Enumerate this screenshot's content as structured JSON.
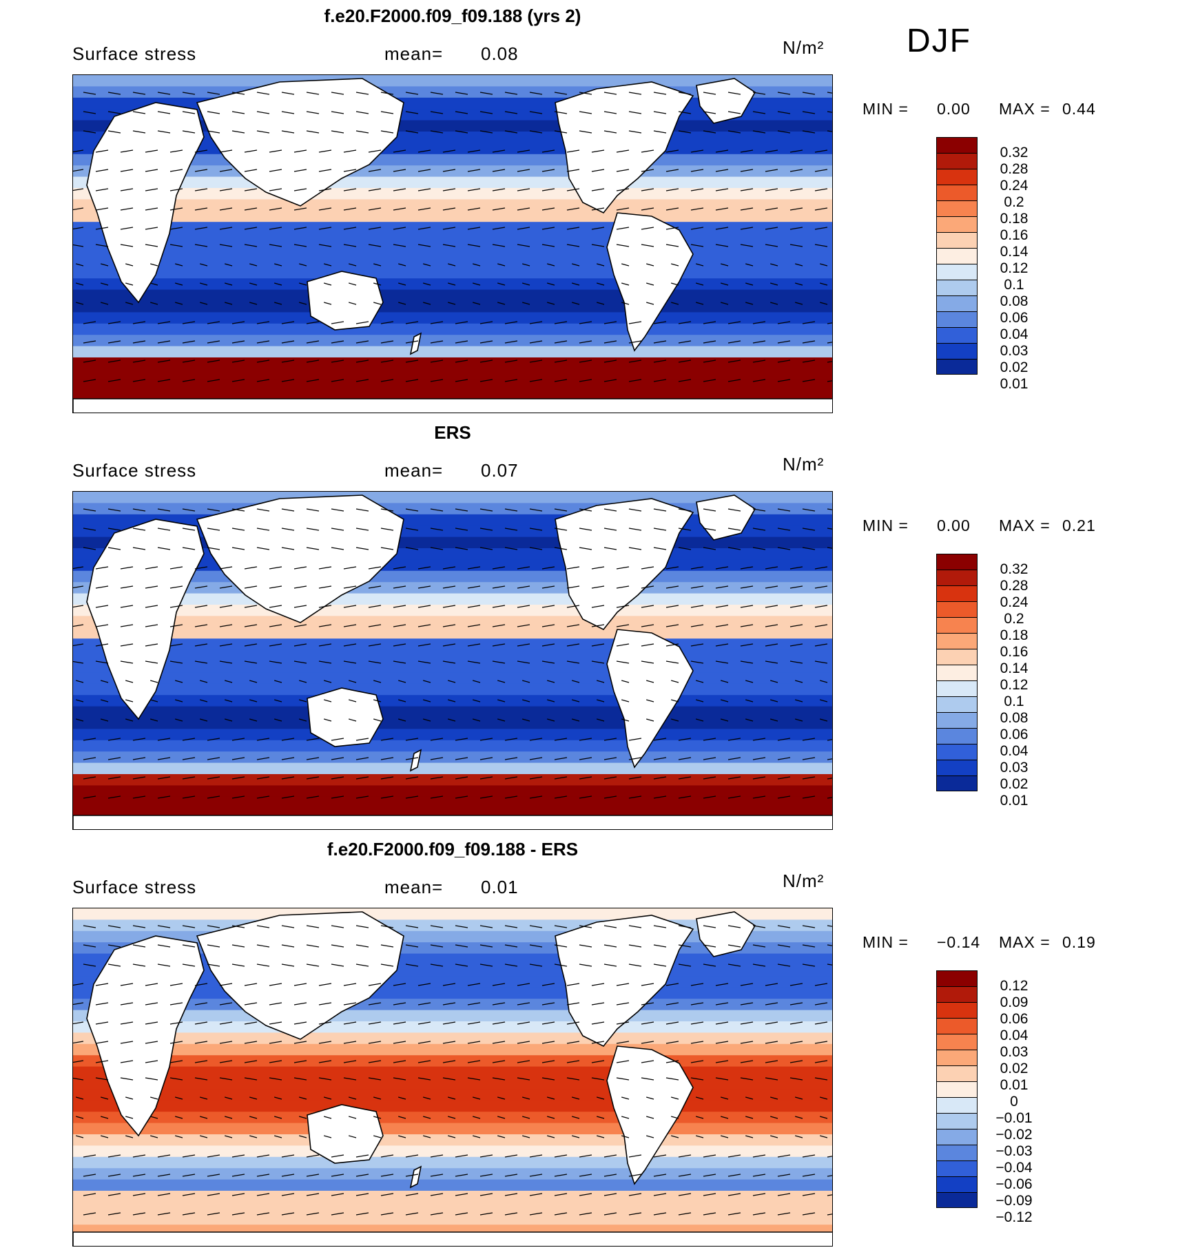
{
  "season": "DJF",
  "panels": [
    {
      "title": "f.e20.F2000.f09_f09.188 (yrs 2)",
      "variable": "Surface stress",
      "mean_label": "mean=",
      "mean_value": "0.08",
      "units": "N/m²",
      "min_label": "MIN =",
      "min_value": "0.00",
      "max_label": "MAX =",
      "max_value": "0.44",
      "colorbar": {
        "levels": [
          "0.32",
          "0.28",
          "0.24",
          "0.2",
          "0.18",
          "0.16",
          "0.14",
          "0.12",
          "0.1",
          "0.08",
          "0.06",
          "0.04",
          "0.03",
          "0.02",
          "0.01"
        ],
        "colors": [
          "#8b0000",
          "#b11a0a",
          "#d8330f",
          "#ec5a2a",
          "#f7834f",
          "#fba878",
          "#fcd1b3",
          "#fdeee2",
          "#d8e8f7",
          "#aecbee",
          "#85aae6",
          "#5b86de",
          "#3160d9",
          "#1340c4",
          "#0a2a99"
        ]
      }
    },
    {
      "title": "ERS",
      "variable": "Surface stress",
      "mean_label": "mean=",
      "mean_value": "0.07",
      "units": "N/m²",
      "min_label": "MIN =",
      "min_value": "0.00",
      "max_label": "MAX =",
      "max_value": "0.21",
      "colorbar": {
        "levels": [
          "0.32",
          "0.28",
          "0.24",
          "0.2",
          "0.18",
          "0.16",
          "0.14",
          "0.12",
          "0.1",
          "0.08",
          "0.06",
          "0.04",
          "0.03",
          "0.02",
          "0.01"
        ],
        "colors": [
          "#8b0000",
          "#b11a0a",
          "#d8330f",
          "#ec5a2a",
          "#f7834f",
          "#fba878",
          "#fcd1b3",
          "#fdeee2",
          "#d8e8f7",
          "#aecbee",
          "#85aae6",
          "#5b86de",
          "#3160d9",
          "#1340c4",
          "#0a2a99"
        ]
      }
    },
    {
      "title": "f.e20.F2000.f09_f09.188 - ERS",
      "variable": "Surface stress",
      "mean_label": "mean=",
      "mean_value": "0.01",
      "units": "N/m²",
      "min_label": "MIN =",
      "min_value": "−0.14",
      "max_label": "MAX =",
      "max_value": "0.19",
      "colorbar": {
        "levels": [
          "0.12",
          "0.09",
          "0.06",
          "0.04",
          "0.03",
          "0.02",
          "0.01",
          "0",
          "−0.01",
          "−0.02",
          "−0.03",
          "−0.04",
          "−0.06",
          "−0.09",
          "−0.12"
        ],
        "colors": [
          "#8b0000",
          "#b11a0a",
          "#d8330f",
          "#ec5a2a",
          "#f7834f",
          "#fba878",
          "#fcd1b3",
          "#fdeee2",
          "#d8e8f7",
          "#aecbee",
          "#85aae6",
          "#5b86de",
          "#3160d9",
          "#1340c4",
          "#0a2a99"
        ]
      }
    }
  ]
}
